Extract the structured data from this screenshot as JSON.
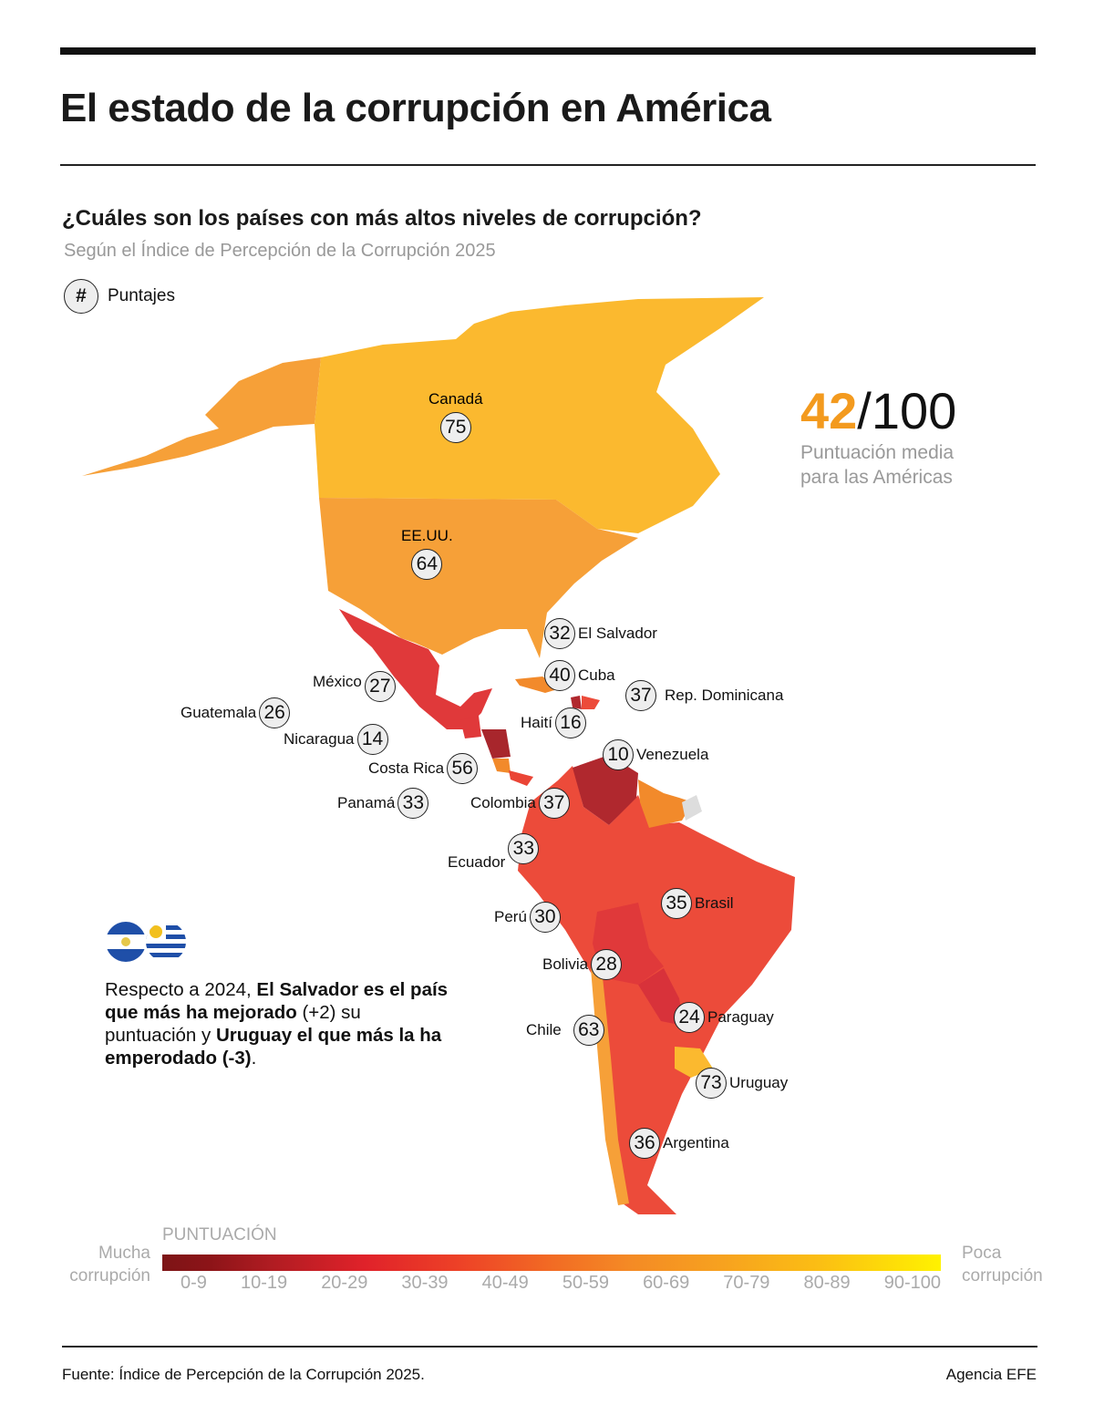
{
  "header": {
    "title": "El estado de la corrupción en América"
  },
  "subtitle": "¿Cuáles son los países con más altos niveles de corrupción?",
  "source_line": "Según el Índice de Percepción de la Corrupción 2025",
  "legend_key": {
    "symbol": "#",
    "label": "Puntajes"
  },
  "average": {
    "score": "42",
    "max": "/100",
    "label_line1": "Puntuación media",
    "label_line2": "para las Américas",
    "accent": "#f39a1e"
  },
  "countries": [
    {
      "name": "Canadá",
      "score": "75"
    },
    {
      "name": "EE.UU.",
      "score": "64"
    },
    {
      "name": "El Salvador",
      "score": "32"
    },
    {
      "name": "Cuba",
      "score": "40"
    },
    {
      "name": "Rep. Dominicana",
      "score": "37"
    },
    {
      "name": "Haití",
      "score": "16"
    },
    {
      "name": "México",
      "score": "27"
    },
    {
      "name": "Guatemala",
      "score": "26"
    },
    {
      "name": "Nicaragua",
      "score": "14"
    },
    {
      "name": "Costa Rica",
      "score": "56"
    },
    {
      "name": "Panamá",
      "score": "33"
    },
    {
      "name": "Colombia",
      "score": "37"
    },
    {
      "name": "Venezuela",
      "score": "10"
    },
    {
      "name": "Ecuador",
      "score": "33"
    },
    {
      "name": "Brasil",
      "score": "35"
    },
    {
      "name": "Perú",
      "score": "30"
    },
    {
      "name": "Bolivia",
      "score": "28"
    },
    {
      "name": "Paraguay",
      "score": "24"
    },
    {
      "name": "Chile",
      "score": "63"
    },
    {
      "name": "Uruguay",
      "score": "73"
    },
    {
      "name": "Argentina",
      "score": "36"
    }
  ],
  "note": {
    "flags": [
      "el-salvador-flag",
      "uruguay-flag"
    ],
    "p1": "Respecto a 2024, ",
    "b1": "El Salvador es el país que más ha mejorado",
    "p2": " (+2) su puntuación  y ",
    "b2": "Uruguay el que más la ha emperodado (-3)",
    "p3": "."
  },
  "scale": {
    "title": "PUNTUACIÓN",
    "left_label": "Mucha corrupción",
    "right_label": "Poca corrupción",
    "ticks": [
      "0-9",
      "10-19",
      "20-29",
      "30-39",
      "40-49",
      "50-59",
      "60-69",
      "70-79",
      "80-89",
      "90-100"
    ],
    "colors": [
      "#7d1416",
      "#b01c22",
      "#e0222a",
      "#ed4127",
      "#f26b24",
      "#f48a25",
      "#f7a21f",
      "#fbbd14",
      "#fdd800",
      "#fff200"
    ]
  },
  "footer": {
    "source": "Fuente: Índice de Percepción de la Corrupción 2025.",
    "brand": "Agencia EFE"
  }
}
